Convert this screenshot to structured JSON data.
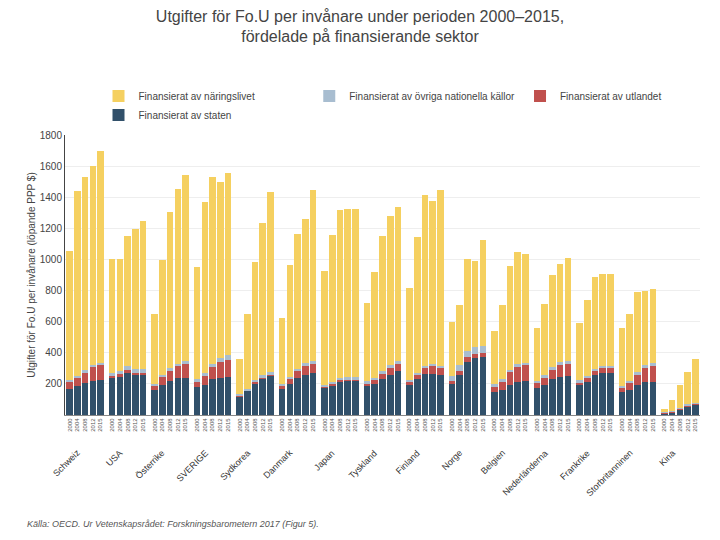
{
  "chart_data": {
    "type": "bar",
    "stacked": true,
    "title": "Utgifter för Fo.U per invånare under perioden 2000–2015,\nfördelade på finansierande sektor",
    "ylabel": "Utgifter för Fo.U per invånare (löpande PPP $)",
    "source": "Källa: OECD. Ur Vetenskapsrådet: Forskningsbarometern 2017 (Figur 5).",
    "categories": [
      "Schweiz",
      "USA",
      "Österrike",
      "SVERIGE",
      "Sydkorea",
      "Danmark",
      "Japan",
      "Tyskland",
      "Finland",
      "Norge",
      "Belgien",
      "Nederländerna",
      "Frankrike",
      "Storbritanninen",
      "Kina"
    ],
    "subcategories": [
      "2000",
      "2004",
      "2008",
      "2012",
      "2015"
    ],
    "series": [
      {
        "name": "Finansierat av staten",
        "color": "#31506A",
        "values": [
          [
            170,
            185,
            205,
            220,
            225
          ],
          [
            240,
            250,
            275,
            260,
            260
          ],
          [
            160,
            195,
            220,
            235,
            240
          ],
          [
            180,
            195,
            230,
            240,
            245
          ],
          [
            120,
            155,
            205,
            235,
            255
          ],
          [
            170,
            200,
            240,
            260,
            270
          ],
          [
            175,
            190,
            215,
            220,
            220
          ],
          [
            185,
            200,
            230,
            260,
            280
          ],
          [
            195,
            230,
            265,
            265,
            255
          ],
          [
            200,
            260,
            340,
            365,
            370
          ],
          [
            145,
            160,
            195,
            215,
            220
          ],
          [
            175,
            195,
            230,
            245,
            250
          ],
          [
            195,
            215,
            255,
            270,
            270
          ],
          [
            145,
            160,
            195,
            210,
            215
          ],
          [
            10,
            18,
            35,
            55,
            65
          ]
        ]
      },
      {
        "name": "Finansierat av utlandet",
        "color": "#C0504D",
        "values": [
          [
            45,
            55,
            70,
            90,
            100
          ],
          [
            10,
            12,
            12,
            12,
            12
          ],
          [
            30,
            50,
            65,
            80,
            90
          ],
          [
            35,
            55,
            80,
            100,
            110
          ],
          [
            5,
            5,
            8,
            8,
            8
          ],
          [
            20,
            30,
            40,
            55,
            60
          ],
          [
            8,
            10,
            10,
            10,
            10
          ],
          [
            20,
            25,
            35,
            45,
            50
          ],
          [
            20,
            30,
            40,
            50,
            50
          ],
          [
            20,
            25,
            30,
            30,
            30
          ],
          [
            40,
            55,
            80,
            95,
            100
          ],
          [
            30,
            45,
            60,
            75,
            80
          ],
          [
            15,
            20,
            25,
            30,
            30
          ],
          [
            30,
            45,
            65,
            90,
            100
          ],
          [
            5,
            5,
            8,
            8,
            8
          ]
        ]
      },
      {
        "name": "Finansierat av övriga nationella källor",
        "color": "#A8BDD0",
        "values": [
          [
            10,
            12,
            12,
            12,
            12
          ],
          [
            20,
            22,
            25,
            25,
            25
          ],
          [
            12,
            14,
            15,
            15,
            15
          ],
          [
            15,
            18,
            20,
            25,
            28
          ],
          [
            8,
            10,
            10,
            12,
            12
          ],
          [
            12,
            14,
            16,
            18,
            18
          ],
          [
            10,
            10,
            12,
            12,
            12
          ],
          [
            12,
            14,
            15,
            16,
            16
          ],
          [
            10,
            12,
            12,
            12,
            12
          ],
          [
            30,
            35,
            40,
            45,
            45
          ],
          [
            12,
            14,
            15,
            16,
            16
          ],
          [
            14,
            16,
            18,
            20,
            20
          ],
          [
            12,
            13,
            14,
            15,
            15
          ],
          [
            14,
            16,
            18,
            20,
            22
          ],
          [
            3,
            4,
            5,
            6,
            6
          ]
        ]
      },
      {
        "name": "Finansierat av näringslivet",
        "color": "#F5D060",
        "values": [
          [
            830,
            1185,
            1240,
            1280,
            1360
          ],
          [
            730,
            720,
            840,
            900,
            950
          ],
          [
            450,
            740,
            1005,
            1120,
            1200
          ],
          [
            720,
            1100,
            1200,
            1130,
            1170
          ],
          [
            230,
            480,
            760,
            980,
            1160
          ],
          [
            420,
            720,
            870,
            930,
            1100
          ],
          [
            730,
            950,
            1080,
            1080,
            1080
          ],
          [
            500,
            680,
            870,
            960,
            990
          ],
          [
            590,
            870,
            1100,
            1050,
            1130
          ],
          [
            350,
            390,
            590,
            550,
            680
          ],
          [
            340,
            480,
            670,
            720,
            700
          ],
          [
            340,
            460,
            590,
            630,
            660
          ],
          [
            370,
            490,
            590,
            590,
            590
          ],
          [
            370,
            430,
            510,
            480,
            470
          ],
          [
            22,
            70,
            145,
            205,
            280
          ]
        ]
      }
    ],
    "ylim": [
      0,
      1800
    ],
    "yticks": [
      200,
      400,
      600,
      800,
      1000,
      1200,
      1400,
      1600,
      1800
    ],
    "grid": true,
    "legend": "top"
  }
}
